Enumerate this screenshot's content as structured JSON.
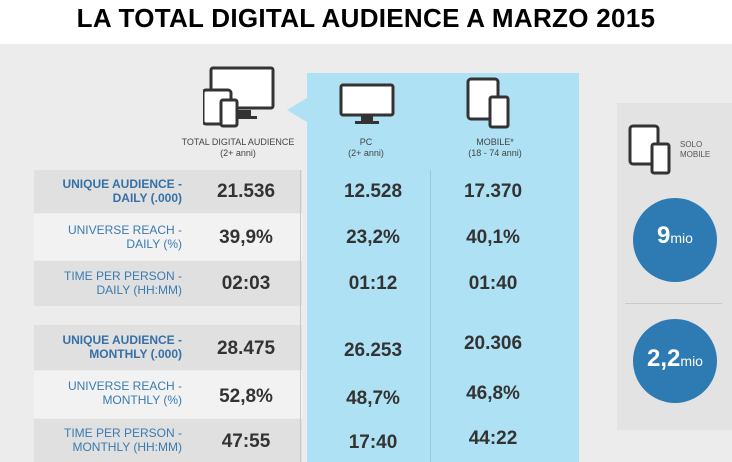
{
  "title": "LA TOTAL DIGITAL AUDIENCE A MARZO 2015",
  "columns": [
    {
      "name": "TOTAL DIGITAL AUDIENCE",
      "sub": "(2+ anni)",
      "icon": "multi-device-icon"
    },
    {
      "name": "PC",
      "sub": "(2+ anni)",
      "icon": "monitor-icon"
    },
    {
      "name": "MOBILE*",
      "sub": "(18 - 74 anni)",
      "icon": "tablet-phone-icon"
    }
  ],
  "rows": [
    {
      "line1": "UNIQUE AUDIENCE -",
      "line2": "DAILY (.000)",
      "values": [
        "21.536",
        "12.528",
        "17.370"
      ]
    },
    {
      "line1": "UNIVERSE REACH -",
      "line2": "DAILY (%)",
      "values": [
        "39,9%",
        "23,2%",
        "40,1%"
      ]
    },
    {
      "line1": "TIME PER PERSON -",
      "line2": "DAILY (HH:MM)",
      "values": [
        "02:03",
        "01:12",
        "01:40"
      ]
    },
    {
      "line1": "UNIQUE AUDIENCE -",
      "line2": "MONTHLY (.000)",
      "values": [
        "28.475",
        "26.253",
        "20.306"
      ]
    },
    {
      "line1": "UNIVERSE REACH -",
      "line2": "MONTHLY (%)",
      "values": [
        "52,8%",
        "48,7%",
        "46,8%"
      ]
    },
    {
      "line1": "TIME PER PERSON -",
      "line2": "MONTHLY (HH:MM)",
      "values": [
        "47:55",
        "17:40",
        "44:22"
      ]
    }
  ],
  "solo_mobile": {
    "label1": "SOLO",
    "label2": "MOBILE",
    "daily_value": "9",
    "monthly_value": "2,2",
    "unit": "mio"
  },
  "chart_data": {
    "type": "table",
    "title": "LA TOTAL DIGITAL AUDIENCE A MARZO 2015",
    "columns": [
      "TOTAL DIGITAL AUDIENCE (2+ anni)",
      "PC (2+ anni)",
      "MOBILE* (18 - 74 anni)"
    ],
    "rows": [
      {
        "metric": "UNIQUE AUDIENCE - DAILY (.000)",
        "values": [
          21536,
          12528,
          17370
        ]
      },
      {
        "metric": "UNIVERSE REACH - DAILY (%)",
        "values": [
          39.9,
          23.2,
          40.1
        ]
      },
      {
        "metric": "TIME PER PERSON - DAILY (HH:MM)",
        "values": [
          "02:03",
          "01:12",
          "01:40"
        ]
      },
      {
        "metric": "UNIQUE AUDIENCE - MONTHLY (.000)",
        "values": [
          28475,
          26253,
          20306
        ]
      },
      {
        "metric": "UNIVERSE REACH - MONTHLY (%)",
        "values": [
          52.8,
          48.7,
          46.8
        ]
      },
      {
        "metric": "TIME PER PERSON - MONTHLY (HH:MM)",
        "values": [
          "47:55",
          "17:40",
          "44:22"
        ]
      }
    ],
    "solo_mobile": {
      "daily": "9 mio",
      "monthly": "2,2 mio"
    }
  },
  "colors": {
    "accent": "#2e7ab2",
    "pc_highlight": "#aee1f3",
    "label_blue": "#3a7bb0"
  }
}
